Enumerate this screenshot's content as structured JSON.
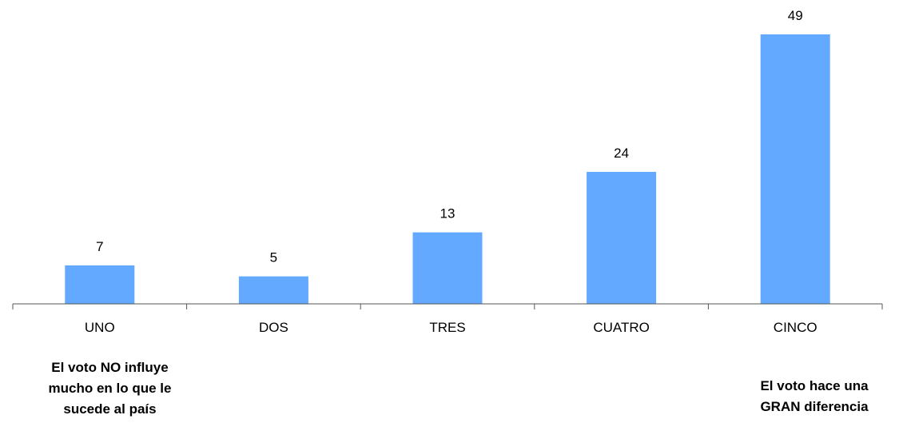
{
  "chart_data": {
    "type": "bar",
    "categories": [
      "UNO",
      "DOS",
      "TRES",
      "CUATRO",
      "CINCO"
    ],
    "values": [
      7,
      5,
      13,
      24,
      49
    ],
    "title": "",
    "xlabel": "",
    "ylabel": "",
    "ylim": [
      0,
      49
    ],
    "grid": false,
    "bar_color": "#62a9ff",
    "data_labels": true
  },
  "annotations": {
    "left": [
      "El voto NO influye",
      "mucho en lo que le",
      "sucede al país"
    ],
    "right": [
      "El voto hace una",
      "GRAN diferencia"
    ]
  }
}
